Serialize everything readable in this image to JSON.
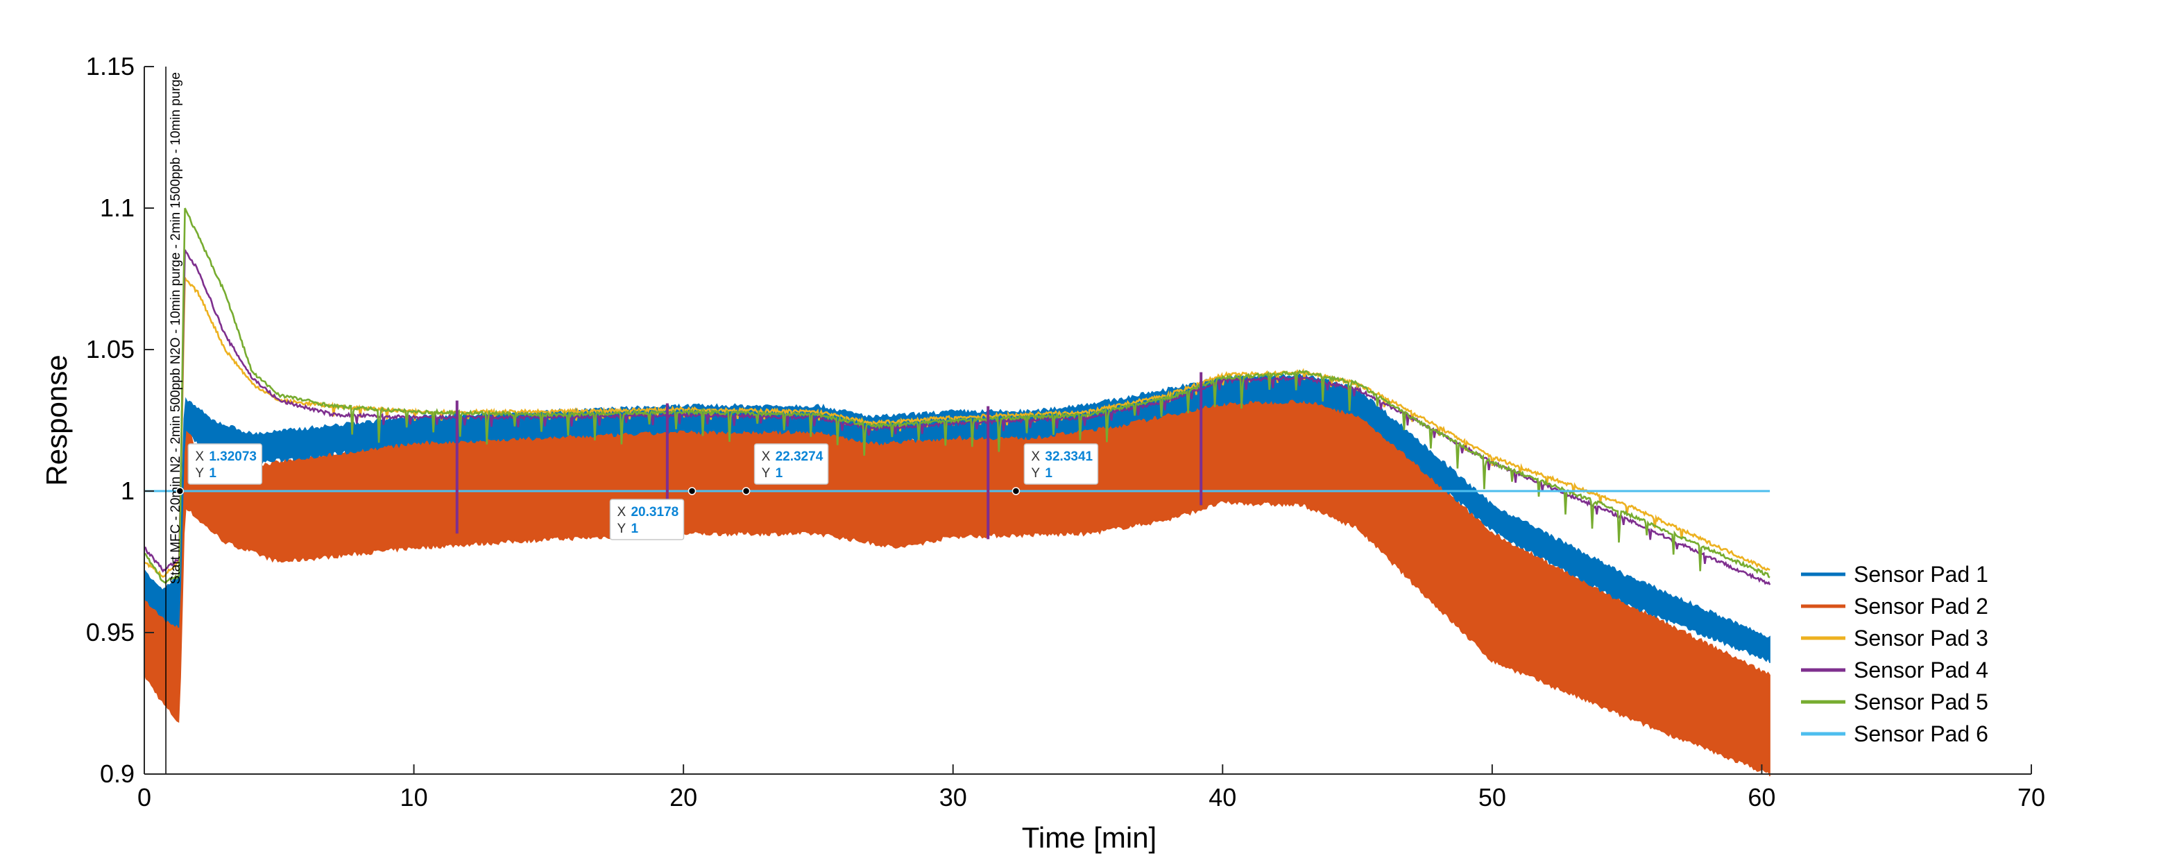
{
  "chart_data": {
    "type": "line",
    "xlabel": "Time [min]",
    "ylabel": "Response",
    "xlim": [
      0,
      70
    ],
    "ylim": [
      0.9,
      1.15
    ],
    "xticks": [
      0,
      10,
      20,
      30,
      40,
      50,
      60,
      70
    ],
    "yticks": [
      0.9,
      0.95,
      1,
      1.05,
      1.1,
      1.15
    ],
    "ytick_labels": [
      "0.9",
      "0.95",
      "1",
      "1.05",
      "1.1",
      "1.15"
    ],
    "grid": false,
    "legend_position": "right",
    "annotation": {
      "text": "Start MFC - 20min N2 - 2min 500ppb N2O - 10min purge - 2min 1500ppb - 10min purge",
      "x": 0.8
    },
    "series": [
      {
        "name": "Sensor Pad 1",
        "color": "#0072BD",
        "band": true,
        "x": [
          0,
          0.7,
          1.3,
          1.5,
          2.5,
          4,
          6,
          10,
          15,
          20,
          25,
          27,
          30,
          33,
          36,
          40,
          43,
          45,
          47,
          50,
          55,
          60.3
        ],
        "upper": [
          0.972,
          0.965,
          0.97,
          1.033,
          1.025,
          1.02,
          1.022,
          1.026,
          1.028,
          1.03,
          1.03,
          1.026,
          1.028,
          1.028,
          1.032,
          1.04,
          1.041,
          1.036,
          1.02,
          0.995,
          0.97,
          0.948
        ],
        "lower": [
          0.962,
          0.955,
          0.952,
          1.022,
          1.012,
          1.01,
          1.012,
          1.017,
          1.019,
          1.021,
          1.021,
          1.017,
          1.019,
          1.019,
          1.023,
          1.031,
          1.032,
          1.027,
          1.011,
          0.986,
          0.96,
          0.94
        ]
      },
      {
        "name": "Sensor Pad 2",
        "color": "#D95319",
        "band": true,
        "x": [
          0,
          0.7,
          1.3,
          1.5,
          2,
          3,
          5,
          10,
          15,
          20,
          25,
          28,
          30,
          35,
          38,
          40,
          43,
          45,
          47,
          50,
          55,
          60.3
        ],
        "upper": [
          0.965,
          0.955,
          0.96,
          1.028,
          1.01,
          1.008,
          1.01,
          1.018,
          1.02,
          1.022,
          1.022,
          1.018,
          1.02,
          1.022,
          1.028,
          1.032,
          1.033,
          1.028,
          1.012,
          0.985,
          0.96,
          0.935
        ],
        "lower": [
          0.935,
          0.925,
          0.918,
          0.995,
          0.99,
          0.982,
          0.975,
          0.98,
          0.983,
          0.985,
          0.985,
          0.98,
          0.984,
          0.985,
          0.99,
          0.996,
          0.995,
          0.987,
          0.968,
          0.94,
          0.92,
          0.9
        ]
      },
      {
        "name": "Sensor Pad 3",
        "color": "#EDB120",
        "band": false,
        "x": [
          0,
          0.7,
          1.3,
          1.5,
          2,
          3,
          4,
          5,
          7,
          10,
          15,
          20,
          25,
          27,
          30,
          35,
          38,
          40,
          43,
          45,
          47,
          50,
          55,
          60.3
        ],
        "y": [
          0.975,
          0.97,
          0.975,
          1.075,
          1.07,
          1.05,
          1.038,
          1.032,
          1.03,
          1.028,
          1.028,
          1.029,
          1.028,
          1.024,
          1.026,
          1.028,
          1.034,
          1.041,
          1.042,
          1.038,
          1.028,
          1.012,
          0.995,
          0.972
        ]
      },
      {
        "name": "Sensor Pad 4",
        "color": "#7E2F8E",
        "band": false,
        "x": [
          0,
          0.7,
          1.3,
          1.5,
          2,
          3,
          4,
          5,
          7,
          10,
          15,
          20,
          25,
          27,
          30,
          35,
          38,
          40,
          43,
          45,
          47,
          50,
          55,
          60.3
        ],
        "y": [
          0.98,
          0.972,
          0.976,
          1.085,
          1.078,
          1.055,
          1.04,
          1.032,
          1.027,
          1.026,
          1.026,
          1.027,
          1.026,
          1.022,
          1.024,
          1.026,
          1.032,
          1.039,
          1.04,
          1.036,
          1.026,
          1.01,
          0.99,
          0.967
        ]
      },
      {
        "name": "Sensor Pad 5",
        "color": "#77AC30",
        "band": false,
        "x": [
          0,
          0.7,
          1.3,
          1.5,
          2,
          3,
          4,
          5,
          7,
          10,
          15,
          20,
          25,
          27,
          30,
          35,
          38,
          40,
          43,
          45,
          47,
          50,
          55,
          60.3
        ],
        "y": [
          0.978,
          0.968,
          0.97,
          1.1,
          1.09,
          1.07,
          1.042,
          1.034,
          1.03,
          1.028,
          1.027,
          1.028,
          1.027,
          1.023,
          1.025,
          1.027,
          1.033,
          1.04,
          1.042,
          1.038,
          1.026,
          1.01,
          0.992,
          0.97
        ]
      },
      {
        "name": "Sensor Pad 6",
        "color": "#4DBEEE",
        "band": false,
        "x": [
          0,
          60.3
        ],
        "y": [
          1,
          1
        ]
      }
    ],
    "spikes": {
      "color": "#7E2F8E",
      "items": [
        {
          "x": 11.6,
          "y_top": 1.032,
          "y_bottom": 0.985
        },
        {
          "x": 19.4,
          "y_top": 1.031,
          "y_bottom": 0.985
        },
        {
          "x": 31.3,
          "y_top": 1.03,
          "y_bottom": 0.983
        },
        {
          "x": 39.2,
          "y_top": 1.042,
          "y_bottom": 0.995
        }
      ]
    },
    "datatips": [
      {
        "x_label": "1.32073",
        "y_label": "1",
        "x": 1.32073,
        "y": 1
      },
      {
        "x_label": "20.3178",
        "y_label": "1",
        "x": 20.3178,
        "y": 1
      },
      {
        "x_label": "22.3274",
        "y_label": "1",
        "x": 22.3274,
        "y": 1
      },
      {
        "x_label": "32.3341",
        "y_label": "1",
        "x": 32.3341,
        "y": 1
      }
    ]
  }
}
